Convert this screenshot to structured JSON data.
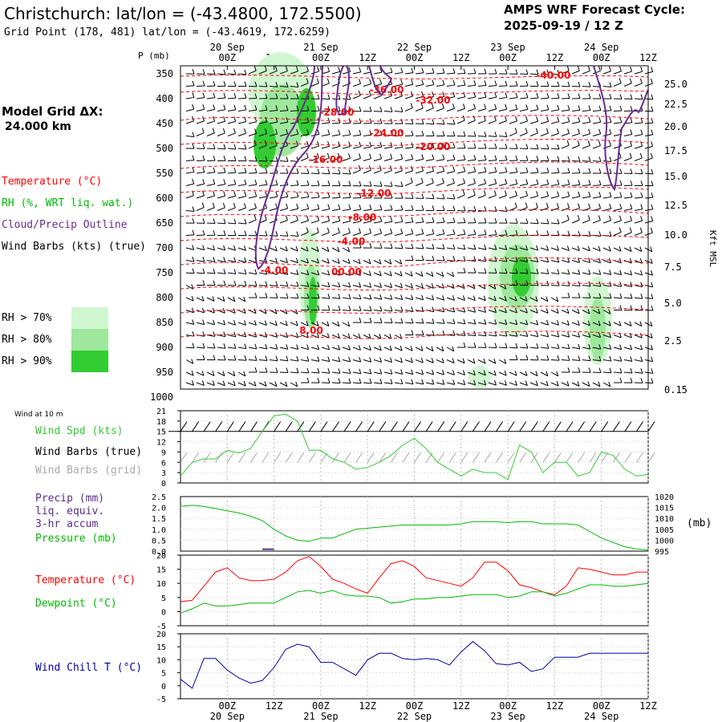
{
  "header": {
    "title": "Christchurch:  lat/lon = (-43.4800, 172.5500)",
    "grid_point": "Grid Point (178, 481) lat/lon = (-43.4619, 172.6259)",
    "cycle_title": "AMPS WRF Forecast Cycle:",
    "cycle_value": "2025-09-19 / 12  Z"
  },
  "model_grid": {
    "label": "Model Grid ΔX:",
    "value": "24.000 km"
  },
  "legend": {
    "temperature": "Temperature (°C)",
    "rh": "RH (%, WRT liq. wat.)",
    "cloud": "Cloud/Precip Outline",
    "wind_barbs": "Wind Barbs (kts) (true)",
    "rh_levels": [
      "RH > 70%",
      "RH > 80%",
      "RH > 90%"
    ],
    "rh_colors": [
      "#d0f7d0",
      "#9ee89e",
      "#33cc33"
    ]
  },
  "colors": {
    "temperature": "#ff0000",
    "dewpoint": "#00bb00",
    "wind_speed": "#33cc33",
    "pressure": "#00bb00",
    "precip": "#5b2c8f",
    "cloud_outline": "#6a2c91",
    "wind_chill": "#0000aa",
    "grid_barbs": "#aaaaaa"
  },
  "time_axis": {
    "tick_labels": [
      "00Z",
      "12Z",
      "00Z",
      "12Z",
      "00Z",
      "12Z",
      "00Z",
      "12Z",
      "00Z",
      "12Z"
    ],
    "date_labels": [
      "20 Sep",
      "21 Sep",
      "22 Sep",
      "23 Sep",
      "24 Sep"
    ]
  },
  "chart_data": [
    {
      "type": "cross-section",
      "y_axis_label": "P (mb)",
      "y_right_label": "Kft MSL",
      "pressure_levels": [
        350,
        400,
        450,
        500,
        550,
        600,
        650,
        700,
        750,
        800,
        850,
        900,
        950,
        1000
      ],
      "height_kft": [
        "25.0",
        "22.5",
        "20.0",
        "17.5",
        "15.0",
        "12.5",
        "10.0",
        "7.5",
        "5.0",
        "2.5",
        "0.15"
      ],
      "temperature_labels": [
        "-40.00",
        "-36.00",
        "-32.00",
        "-28.00",
        "-24.00",
        "-20.00",
        "-16.00",
        "-12.00",
        "-8.00",
        "-4.00",
        "-4.00",
        "00.00",
        "8.00"
      ]
    },
    {
      "type": "line",
      "title": "Wind at 10 m",
      "series_labels": [
        "Wind Spd (kts)",
        "Wind Barbs (true)",
        "Wind Barbs (grid)"
      ],
      "y_ticks": [
        0,
        3,
        6,
        9,
        12,
        15,
        18,
        21
      ],
      "ylim": [
        0,
        21
      ],
      "x_hours": [
        0,
        3,
        6,
        9,
        12,
        15,
        18,
        21,
        24,
        27,
        30,
        33,
        36,
        39,
        42,
        45,
        48,
        51,
        54,
        57,
        60,
        63,
        66,
        69,
        72,
        75,
        78,
        81,
        84,
        87,
        90,
        93,
        96,
        99,
        102,
        105,
        108,
        111,
        114,
        117,
        120
      ],
      "values": [
        2,
        6,
        7,
        7,
        9.5,
        8.7,
        10,
        15,
        19.5,
        20,
        18,
        9.5,
        9.5,
        7,
        6,
        4,
        4.5,
        6,
        8,
        11,
        13,
        10,
        6,
        4,
        2,
        4,
        3,
        3,
        1,
        11,
        9,
        3,
        6,
        6,
        2,
        3,
        9,
        8,
        4,
        2,
        2.5
      ]
    },
    {
      "type": "line",
      "series_labels": [
        "Precip (mm)",
        "liq. equiv.",
        "3-hr accum",
        "Pressure (mb)"
      ],
      "precip_y_ticks": [
        "0.0",
        "0.5",
        "1.0",
        "1.5",
        "2.0",
        "2.5"
      ],
      "pressure_y_ticks": [
        995,
        1000,
        1005,
        1010,
        1015,
        1020
      ],
      "pressure_ylim": [
        995,
        1020
      ],
      "unit_label": "(mb)",
      "x_hours": [
        0,
        3,
        6,
        9,
        12,
        15,
        18,
        21,
        24,
        27,
        30,
        33,
        36,
        39,
        42,
        45,
        48,
        51,
        54,
        57,
        60,
        63,
        66,
        69,
        72,
        75,
        78,
        81,
        84,
        87,
        90,
        93,
        96,
        99,
        102,
        105,
        108,
        111,
        114,
        117,
        120
      ],
      "pressure": [
        1015.5,
        1016,
        1015.5,
        1014.5,
        1013.5,
        1012.5,
        1011,
        1009,
        1005,
        1002,
        1000,
        999.5,
        1001,
        1001,
        1003,
        1005,
        1005.5,
        1006,
        1006.5,
        1007,
        1007,
        1007,
        1007,
        1007,
        1007.5,
        1008.5,
        1008.5,
        1008.5,
        1008,
        1008.5,
        1008.5,
        1007.5,
        1007.5,
        1007.5,
        1007,
        1004,
        1001,
        999,
        997,
        996,
        995.5
      ],
      "precip_hours": [
        21,
        24
      ],
      "precip_values": [
        0.05,
        0.05
      ]
    },
    {
      "type": "line",
      "series_labels": [
        "Temperature (°C)",
        "Dewpoint (°C)"
      ],
      "y_ticks": [
        -5,
        0,
        5,
        10,
        15,
        20
      ],
      "ylim": [
        -5,
        20
      ],
      "x_hours": [
        0,
        3,
        6,
        9,
        12,
        15,
        18,
        21,
        24,
        27,
        30,
        33,
        36,
        39,
        42,
        45,
        48,
        51,
        54,
        57,
        60,
        63,
        66,
        69,
        72,
        75,
        78,
        81,
        84,
        87,
        90,
        93,
        96,
        99,
        102,
        105,
        108,
        111,
        114,
        117,
        120
      ],
      "temperature": [
        3.5,
        4,
        9,
        14,
        15.5,
        12,
        11,
        11,
        11.5,
        14,
        18,
        19.5,
        16,
        11.5,
        10,
        8,
        6.5,
        12,
        17,
        18,
        16,
        12,
        11,
        10,
        9,
        12,
        17.5,
        17.5,
        14.5,
        9.5,
        8.5,
        7,
        6,
        9,
        15.5,
        15,
        14,
        13,
        13,
        14,
        14
      ],
      "dewpoint": [
        -0.5,
        1,
        3,
        2,
        2,
        2.5,
        3,
        3,
        3,
        5,
        7,
        7.5,
        6.5,
        7.5,
        6,
        5.5,
        5.5,
        5,
        3,
        3.5,
        4.5,
        4.5,
        5,
        5,
        5.5,
        6,
        6,
        6,
        5,
        5.5,
        7,
        7,
        5.5,
        6.5,
        8,
        9.5,
        9.5,
        9,
        9,
        9.5,
        10
      ]
    },
    {
      "type": "line",
      "series_labels": [
        "Wind Chill T (°C)"
      ],
      "y_ticks": [
        -5,
        0,
        5,
        10,
        15,
        20
      ],
      "ylim": [
        -5,
        20
      ],
      "x_hours": [
        0,
        3,
        6,
        9,
        12,
        15,
        18,
        21,
        24,
        27,
        30,
        33,
        36,
        39,
        42,
        45,
        48,
        51,
        54,
        57,
        60,
        63,
        66,
        69,
        72,
        75,
        78,
        81,
        84,
        87,
        90,
        93,
        96,
        99,
        102,
        105,
        108,
        111,
        114,
        117,
        120
      ],
      "values": [
        2.5,
        -1,
        10.5,
        10.5,
        6,
        3,
        1,
        2,
        7,
        14,
        16,
        15,
        9,
        9,
        6.5,
        4,
        10,
        12.5,
        12.5,
        10.5,
        10,
        10.5,
        10,
        8,
        13,
        17,
        13.5,
        8.5,
        8,
        9,
        5.5,
        6.5,
        11,
        11,
        11,
        12.5,
        12.5,
        12.5,
        12.5,
        12.5,
        12.5
      ]
    }
  ]
}
